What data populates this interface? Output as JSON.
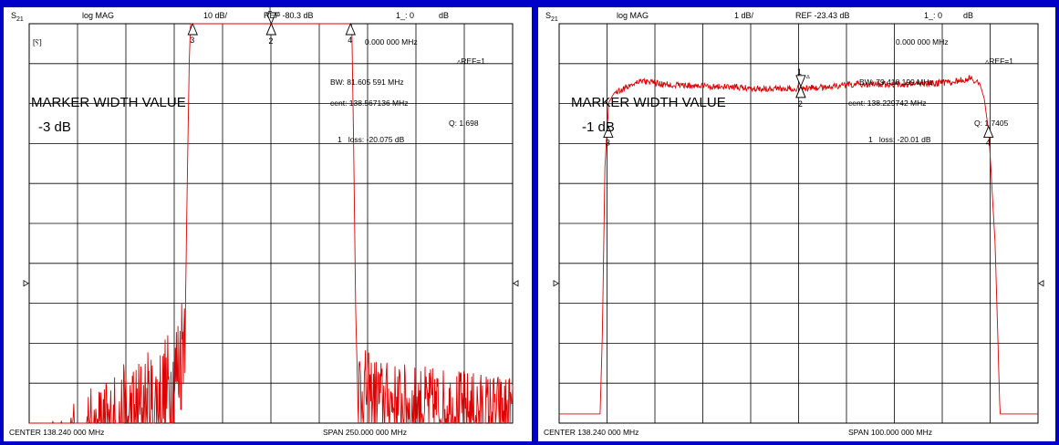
{
  "colors": {
    "trace": "#e00000",
    "grid": "#000000",
    "frame": "#0000c8",
    "background": "#ffffff"
  },
  "chart_data": [
    {
      "type": "line",
      "header": {
        "param": "S",
        "param_sub": "21",
        "format": "log MAG",
        "scale": "10 dB/",
        "ref": "REF -80.3 dB",
        "marker_readout": "1_: 0",
        "marker_unit": "dB"
      },
      "footer": {
        "center": "CENTER  138.240 000 MHz",
        "span": "SPAN  250.000 000 MHz"
      },
      "center_mhz": 138.24,
      "span_mhz": 250.0,
      "divisions": {
        "x": 10,
        "y": 10
      },
      "marker_info": {
        "freq": "0.000 000 MHz",
        "ref": "REF=1",
        "bw": "BW:  81.605 591 MHz",
        "cent": "cent:  138.567136 MHz",
        "q": "Q: 1.698",
        "loss": "1_ loss: -20.075 dB",
        "title": "MARKER WIDTH VALUE",
        "level": "-3 dB",
        "box_icon": "[Ⲋ]"
      },
      "markers": [
        {
          "id": "1",
          "freq_mhz": 138.4,
          "db": -20.1,
          "dir": "up"
        },
        {
          "id": "2",
          "freq_mhz": 138.4,
          "db": -20.1,
          "dir": "down"
        },
        {
          "id": "3",
          "freq_mhz": 97.8,
          "db": -23.1,
          "dir": "up"
        },
        {
          "id": "4",
          "freq_mhz": 179.4,
          "db": -23.1,
          "dir": "up"
        }
      ],
      "trace_points": [
        [
          13.24,
          -150
        ],
        [
          20,
          -148
        ],
        [
          30,
          -144
        ],
        [
          40,
          -139
        ],
        [
          50,
          -135
        ],
        [
          60,
          -132
        ],
        [
          70,
          -129
        ],
        [
          80,
          -126
        ],
        [
          88,
          -121
        ],
        [
          92,
          -112
        ],
        [
          94,
          -102
        ],
        [
          95,
          -70
        ],
        [
          96,
          -40
        ],
        [
          97,
          -25
        ],
        [
          98,
          -21
        ],
        [
          102,
          -20.2
        ],
        [
          120,
          -20.1
        ],
        [
          140,
          -20.0
        ],
        [
          160,
          -20.1
        ],
        [
          175,
          -20.3
        ],
        [
          178,
          -21
        ],
        [
          180,
          -28
        ],
        [
          181,
          -60
        ],
        [
          182,
          -100
        ],
        [
          183,
          -120
        ],
        [
          190,
          -123
        ],
        [
          200,
          -125
        ],
        [
          220,
          -126
        ],
        [
          240,
          -127
        ],
        [
          263.24,
          -128
        ]
      ],
      "noise": [
        {
          "from_mhz": 13.24,
          "to_mhz": 94,
          "amp_db": 16
        },
        {
          "from_mhz": 183,
          "to_mhz": 263.24,
          "amp_db": 10
        }
      ],
      "spikes": [
        {
          "freq_mhz": 183.5,
          "db": -145
        },
        {
          "freq_mhz": 185,
          "db": -140
        },
        {
          "freq_mhz": 211,
          "db": -150
        }
      ],
      "ref_arrow_div": 6.5
    },
    {
      "type": "line",
      "header": {
        "param": "S",
        "param_sub": "21",
        "format": "log MAG",
        "scale": "1 dB/",
        "ref": "REF -23.43 dB",
        "marker_readout": "1_: 0",
        "marker_unit": "dB"
      },
      "footer": {
        "center": "CENTER  138.240 000 MHz",
        "span": "SPAN  100.000 000 MHz"
      },
      "center_mhz": 138.24,
      "span_mhz": 100.0,
      "divisions": {
        "x": 10,
        "y": 10
      },
      "marker_info": {
        "freq": "0.000 000 MHz",
        "ref": "REF=1",
        "bw": "BW:  79.418 199 MHz",
        "cent": "cent:  138.229742 MHz",
        "q": "Q: 1.7405",
        "loss": "1_ loss:  -20.01  dB",
        "title": "MARKER WIDTH VALUE",
        "level": "-1 dB",
        "box_icon": ""
      },
      "markers": [
        {
          "id": "1",
          "freq_mhz": 138.7,
          "db": -20.0,
          "dir": "up"
        },
        {
          "id": "2",
          "freq_mhz": 138.7,
          "db": -20.0,
          "dir": "down"
        },
        {
          "id": "3",
          "freq_mhz": 98.5,
          "db": -21.0,
          "dir": "up"
        },
        {
          "id": "4",
          "freq_mhz": 177.9,
          "db": -21.0,
          "dir": "up"
        }
      ],
      "trace_points": [
        [
          88.24,
          -28.2
        ],
        [
          96.8,
          -28.2
        ],
        [
          97.3,
          -26
        ],
        [
          97.8,
          -22
        ],
        [
          98.6,
          -20.4
        ],
        [
          99.8,
          -20.15
        ],
        [
          101,
          -20.1
        ],
        [
          105,
          -19.85
        ],
        [
          110,
          -19.95
        ],
        [
          120,
          -20.0
        ],
        [
          130,
          -20.05
        ],
        [
          140,
          -20.05
        ],
        [
          150,
          -19.95
        ],
        [
          160,
          -19.95
        ],
        [
          170,
          -19.9
        ],
        [
          174,
          -19.8
        ],
        [
          176,
          -19.9
        ],
        [
          177,
          -20.3
        ],
        [
          178,
          -21.2
        ],
        [
          179.3,
          -24
        ],
        [
          180.3,
          -28.2
        ],
        [
          188.24,
          -28.2
        ]
      ],
      "noise": [
        {
          "from_mhz": 100,
          "to_mhz": 176,
          "amp_db": 0.08
        }
      ],
      "spikes": [],
      "ref_arrow_div": 6.5
    }
  ]
}
